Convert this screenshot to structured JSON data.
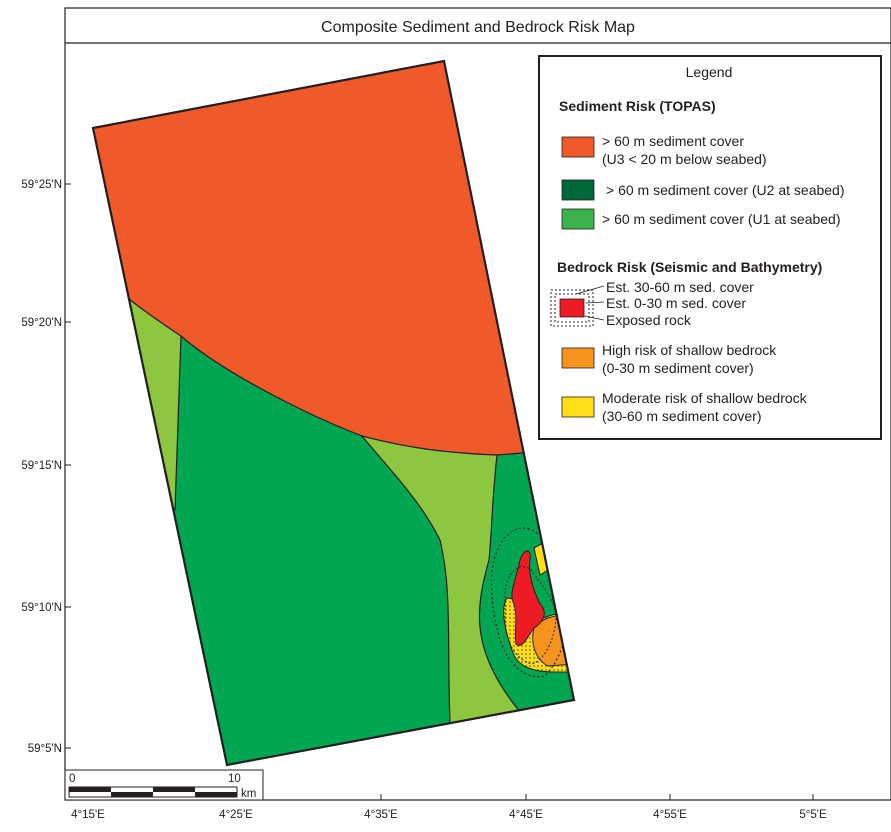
{
  "map": {
    "title": "Composite Sediment and Bedrock Risk Map",
    "latitude_labels": [
      "59°25'N",
      "59°20'N",
      "59°15'N",
      "59°10'N",
      "59°5'N"
    ],
    "longitude_labels": [
      "4°15'E",
      "4°25'E",
      "4°35'E",
      "4°45'E",
      "4°55'E",
      "5°5'E"
    ]
  },
  "legend": {
    "title": "Legend",
    "sediment_heading": "Sediment Risk (TOPAS)",
    "sediment_items": [
      {
        "line1": "> 60 m sediment cover",
        "line2": "(U3 < 20 m below seabed)",
        "color": "#f05a2b"
      },
      {
        "line1": "> 60 m sediment cover (U2 at seabed)",
        "line2": "",
        "color": "#006838"
      },
      {
        "line1": "> 60 m sediment cover (U1 at seabed)",
        "line2": "",
        "color": "#3bb34a"
      }
    ],
    "bedrock_heading": "Bedrock Risk (Seismic and Bathymetry)",
    "bedrock_combo": {
      "est_30_60": "Est. 30-60 m sed. cover",
      "est_0_30": "Est. 0-30 m sed. cover",
      "exposed": "Exposed rock",
      "color": "#ed1c24"
    },
    "bedrock_items": [
      {
        "line1": "High risk of shallow bedrock",
        "line2": "(0-30 m sediment cover)",
        "color": "#f7941d"
      },
      {
        "line1": "Moderate risk of shallow bedrock",
        "line2": "(30-60 m sediment cover)",
        "color": "#ffde17"
      }
    ]
  },
  "scale_bar": {
    "start_label": "0",
    "end_label": "10",
    "unit": "km"
  },
  "colors": {
    "orange_red": "#f05a2b",
    "green": "#00a651",
    "light_green": "#8dc63f",
    "red": "#ed1c24",
    "orange": "#f7941d",
    "yellow": "#ffde17"
  }
}
